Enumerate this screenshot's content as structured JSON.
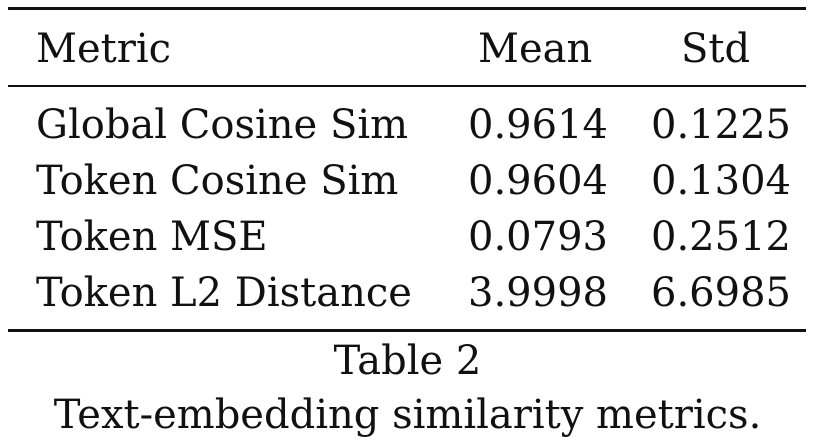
{
  "table": {
    "headers": {
      "metric": "Metric",
      "mean": "Mean",
      "std": "Std"
    },
    "rows": [
      {
        "metric": "Global Cosine Sim",
        "mean": "0.9614",
        "std": "0.1225"
      },
      {
        "metric": "Token Cosine Sim",
        "mean": "0.9604",
        "std": "0.1304"
      },
      {
        "metric": "Token MSE",
        "mean": "0.0793",
        "std": "0.2512"
      },
      {
        "metric": "Token L2 Distance",
        "mean": "3.9998",
        "std": "6.6985"
      }
    ]
  },
  "caption": {
    "label": "Table 2",
    "text": "Text-embedding similarity metrics."
  }
}
